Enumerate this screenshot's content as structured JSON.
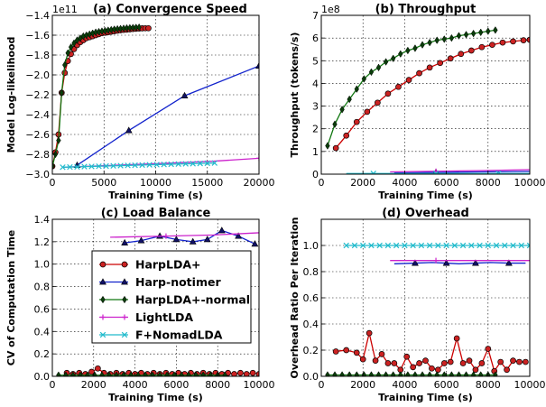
{
  "legend": {
    "entries": [
      "HarpLDA+",
      "Harp-notimer",
      "HarpLDA+-normal",
      "LightLDA",
      "F+NomadLDA"
    ]
  },
  "chart_data": [
    {
      "id": "a",
      "type": "line",
      "title": "(a) Convergence Speed",
      "xlabel": "Training Time (s)",
      "ylabel": "Model Log-likelihood",
      "y_exponent": "1e11",
      "xlim": [
        0,
        20000
      ],
      "ylim": [
        -3.0,
        -1.4
      ],
      "xticks": [
        0,
        5000,
        10000,
        15000,
        20000
      ],
      "xtick_labels": [
        "0",
        "5000",
        "10000",
        "15000",
        "20000"
      ],
      "yticks": [
        -3.0,
        -2.8,
        -2.6,
        -2.4,
        -2.2,
        -2.0,
        -1.8,
        -1.6,
        -1.4
      ],
      "ytick_labels": [
        "−3.0",
        "−2.8",
        "−2.6",
        "−2.4",
        "−2.2",
        "−2.0",
        "−1.8",
        "−1.6",
        "−1.4"
      ],
      "grid": true,
      "series": [
        {
          "name": "HarpLDA+",
          "color": "#cc0000",
          "marker": "circle",
          "marker_color": "#cc2222",
          "x": [
            0,
            300,
            600,
            900,
            1200,
            1500,
            1800,
            2100,
            2400,
            2700,
            3000,
            3300,
            3600,
            3900,
            4200,
            4500,
            4800,
            5100,
            5400,
            5700,
            6000,
            6300,
            6600,
            6900,
            7200,
            7500,
            7800,
            8100,
            8400,
            8700,
            9000,
            9300
          ],
          "y": [
            -2.92,
            -2.78,
            -2.6,
            -2.18,
            -1.98,
            -1.86,
            -1.79,
            -1.74,
            -1.7,
            -1.67,
            -1.65,
            -1.63,
            -1.62,
            -1.61,
            -1.6,
            -1.59,
            -1.58,
            -1.575,
            -1.57,
            -1.565,
            -1.56,
            -1.555,
            -1.55,
            -1.547,
            -1.544,
            -1.541,
            -1.538,
            -1.535,
            -1.533,
            -1.531,
            -1.53,
            -1.53
          ]
        },
        {
          "name": "Harp-notimer",
          "color": "#1122cc",
          "marker": "triangle",
          "marker_color": "#111166",
          "marker_every": 4,
          "x": [
            2400,
            7400,
            12800,
            20000
          ],
          "y": [
            -2.91,
            -2.56,
            -2.21,
            -1.91
          ]
        },
        {
          "name": "HarpLDA+-normal",
          "color": "#117711",
          "marker": "diamond",
          "marker_color": "#0a3d0a",
          "x": [
            0,
            300,
            600,
            900,
            1200,
            1500,
            1800,
            2100,
            2400,
            2700,
            3000,
            3300,
            3600,
            3900,
            4200,
            4500,
            4800,
            5100,
            5400,
            5700,
            6000,
            6300,
            6600,
            6900,
            7200,
            7500,
            7800,
            8100,
            8400
          ],
          "y": [
            -2.92,
            -2.8,
            -2.66,
            -2.18,
            -1.9,
            -1.78,
            -1.72,
            -1.68,
            -1.65,
            -1.63,
            -1.61,
            -1.6,
            -1.59,
            -1.58,
            -1.57,
            -1.565,
            -1.56,
            -1.555,
            -1.55,
            -1.545,
            -1.54,
            -1.537,
            -1.534,
            -1.531,
            -1.528,
            -1.526,
            -1.524,
            -1.522,
            -1.52
          ]
        },
        {
          "name": "LightLDA",
          "color": "#cc22cc",
          "marker": "plus",
          "marker_color": "#cc22cc",
          "marker_every": 3,
          "x": [
            1000,
            5000,
            10000,
            15500,
            20000
          ],
          "y": [
            -2.93,
            -2.915,
            -2.895,
            -2.87,
            -2.84
          ]
        },
        {
          "name": "F+NomadLDA",
          "color": "#22bbcc",
          "marker": "x",
          "marker_color": "#22bbcc",
          "x": [
            1000,
            1700,
            2400,
            3100,
            3800,
            4500,
            5200,
            5900,
            6600,
            7300,
            8000,
            8700,
            9400,
            10100,
            10800,
            11500,
            12200,
            12900,
            13600,
            14300,
            15000,
            15700
          ],
          "y": [
            -2.93,
            -2.928,
            -2.926,
            -2.924,
            -2.922,
            -2.92,
            -2.918,
            -2.916,
            -2.914,
            -2.912,
            -2.91,
            -2.908,
            -2.906,
            -2.904,
            -2.902,
            -2.9,
            -2.898,
            -2.896,
            -2.894,
            -2.892,
            -2.89,
            -2.888
          ]
        }
      ]
    },
    {
      "id": "b",
      "type": "line",
      "title": "(b) Throughput",
      "xlabel": "Training Time (s)",
      "ylabel": "Throughput (tokens/s)",
      "y_exponent": "1e8",
      "xlim": [
        0,
        10000
      ],
      "ylim": [
        0,
        7
      ],
      "xticks": [
        0,
        2000,
        4000,
        6000,
        8000,
        10000
      ],
      "xtick_labels": [
        "0",
        "2000",
        "4000",
        "6000",
        "8000",
        "10000"
      ],
      "yticks": [
        0,
        1,
        2,
        3,
        4,
        5,
        6,
        7
      ],
      "ytick_labels": [
        "0",
        "1",
        "2",
        "3",
        "4",
        "5",
        "6",
        "7"
      ],
      "grid": true,
      "series": [
        {
          "name": "HarpLDA+",
          "color": "#cc0000",
          "marker": "circle",
          "marker_color": "#cc2222",
          "x": [
            700,
            1200,
            1700,
            2200,
            2700,
            3200,
            3700,
            4200,
            4700,
            5200,
            5700,
            6200,
            6700,
            7200,
            7700,
            8200,
            8700,
            9200,
            9700,
            10000
          ],
          "y": [
            1.15,
            1.7,
            2.3,
            2.75,
            3.15,
            3.55,
            3.85,
            4.15,
            4.45,
            4.7,
            4.9,
            5.1,
            5.3,
            5.45,
            5.6,
            5.7,
            5.8,
            5.85,
            5.9,
            5.92
          ]
        },
        {
          "name": "Harp-notimer",
          "color": "#1122cc",
          "marker": "triangle",
          "marker_color": "#111166",
          "marker_every": 3,
          "x": [
            3500,
            5500,
            7500,
            10000
          ],
          "y": [
            0.06,
            0.08,
            0.1,
            0.12
          ]
        },
        {
          "name": "HarpLDA+-normal",
          "color": "#117711",
          "marker": "diamond",
          "marker_color": "#0a3d0a",
          "x": [
            300,
            650,
            1000,
            1350,
            1700,
            2050,
            2400,
            2750,
            3100,
            3450,
            3800,
            4150,
            4500,
            4850,
            5200,
            5550,
            5900,
            6250,
            6600,
            6950,
            7300,
            7650,
            8000,
            8350
          ],
          "y": [
            1.25,
            2.2,
            2.85,
            3.3,
            3.75,
            4.2,
            4.5,
            4.7,
            4.95,
            5.1,
            5.3,
            5.45,
            5.55,
            5.7,
            5.8,
            5.9,
            5.95,
            6.0,
            6.1,
            6.15,
            6.2,
            6.25,
            6.3,
            6.35
          ]
        },
        {
          "name": "LightLDA",
          "color": "#cc22cc",
          "marker": "plus",
          "marker_color": "#cc22cc",
          "marker_every": 3,
          "x": [
            3300,
            5500,
            7800,
            10000
          ],
          "y": [
            0.1,
            0.13,
            0.16,
            0.2
          ]
        },
        {
          "name": "F+NomadLDA",
          "color": "#22bbcc",
          "marker": "x",
          "marker_color": "#22bbcc",
          "marker_every": 2,
          "x": [
            1200,
            2500,
            4000,
            5500,
            7000,
            8500,
            10000
          ],
          "y": [
            0.03,
            0.03,
            0.03,
            0.03,
            0.03,
            0.03,
            0.03
          ]
        }
      ]
    },
    {
      "id": "c",
      "type": "line",
      "title": "(c) Load Balance",
      "xlabel": "Training Time (s)",
      "ylabel": "CV of Computation Time",
      "xlim": [
        0,
        10000
      ],
      "ylim": [
        0,
        1.4
      ],
      "xticks": [
        0,
        2000,
        4000,
        6000,
        8000,
        10000
      ],
      "xtick_labels": [
        "0",
        "2000",
        "4000",
        "6000",
        "8000",
        "10000"
      ],
      "yticks": [
        0,
        0.2,
        0.4,
        0.6,
        0.8,
        1.0,
        1.2,
        1.4
      ],
      "ytick_labels": [
        "0.0",
        "0.2",
        "0.4",
        "0.6",
        "0.8",
        "1.0",
        "1.2",
        "1.4"
      ],
      "grid": true,
      "legend_position": "center-left",
      "series": [
        {
          "name": "HarpLDA+",
          "color": "#cc0000",
          "marker": "circle",
          "marker_color": "#cc2222",
          "x": [
            700,
            1000,
            1300,
            1600,
            1900,
            2200,
            2500,
            2800,
            3100,
            3400,
            3700,
            4000,
            4300,
            4600,
            4900,
            5200,
            5500,
            5800,
            6100,
            6400,
            6700,
            7000,
            7300,
            7600,
            7900,
            8200,
            8500,
            8800,
            9100,
            9400,
            9700,
            10000
          ],
          "y": [
            0.03,
            0.02,
            0.03,
            0.02,
            0.04,
            0.07,
            0.03,
            0.02,
            0.03,
            0.02,
            0.03,
            0.02,
            0.03,
            0.02,
            0.03,
            0.02,
            0.03,
            0.02,
            0.03,
            0.02,
            0.03,
            0.02,
            0.03,
            0.02,
            0.03,
            0.02,
            0.03,
            0.02,
            0.03,
            0.02,
            0.03,
            0.02
          ]
        },
        {
          "name": "Harp-notimer",
          "color": "#1122cc",
          "marker": "triangle",
          "marker_color": "#111166",
          "x": [
            3500,
            4300,
            5200,
            6000,
            6800,
            7500,
            8200,
            9000,
            9800
          ],
          "y": [
            1.19,
            1.21,
            1.25,
            1.22,
            1.2,
            1.22,
            1.3,
            1.25,
            1.18
          ]
        },
        {
          "name": "HarpLDA+-normal",
          "color": "#117711",
          "marker": "diamond",
          "marker_color": "#0a3d0a",
          "x": [
            300,
            650,
            1000,
            1350,
            1700,
            2050,
            2400,
            2750,
            3100,
            3450,
            3800,
            4150,
            4500,
            4850,
            5200,
            5550,
            5900,
            6250,
            6600,
            6950,
            7300,
            7650,
            8000,
            8350
          ],
          "y": [
            0.01,
            0.01,
            0.01,
            0.01,
            0.01,
            0.01,
            0.01,
            0.01,
            0.01,
            0.01,
            0.01,
            0.01,
            0.01,
            0.01,
            0.01,
            0.01,
            0.01,
            0.01,
            0.01,
            0.01,
            0.01,
            0.01,
            0.01,
            0.01
          ]
        },
        {
          "name": "LightLDA",
          "color": "#cc22cc",
          "marker": "plus",
          "marker_color": "#cc22cc",
          "marker_every": 3,
          "x": [
            2800,
            5500,
            7800,
            10000
          ],
          "y": [
            1.24,
            1.25,
            1.26,
            1.28
          ]
        }
      ]
    },
    {
      "id": "d",
      "type": "line",
      "title": "(d) Overhead",
      "xlabel": "Training Time (s)",
      "ylabel": "Overhead Ratio Per Iteration",
      "xlim": [
        0,
        10000
      ],
      "ylim": [
        0,
        1.2
      ],
      "xticks": [
        0,
        2000,
        4000,
        6000,
        8000,
        10000
      ],
      "xtick_labels": [
        "0",
        "2000",
        "4000",
        "6000",
        "8000",
        "10000"
      ],
      "yticks": [
        0,
        0.2,
        0.4,
        0.6,
        0.8,
        1.0
      ],
      "ytick_labels": [
        "0.0",
        "0.2",
        "0.4",
        "0.6",
        "0.8",
        "1.0"
      ],
      "grid": true,
      "series": [
        {
          "name": "HarpLDA+",
          "color": "#cc0000",
          "marker": "circle",
          "marker_color": "#cc2222",
          "x": [
            700,
            1200,
            1700,
            2000,
            2300,
            2600,
            2900,
            3200,
            3500,
            3800,
            4100,
            4400,
            4700,
            5000,
            5300,
            5600,
            5900,
            6200,
            6500,
            6800,
            7100,
            7400,
            7700,
            8000,
            8300,
            8600,
            8900,
            9200,
            9500,
            9800
          ],
          "y": [
            0.19,
            0.2,
            0.18,
            0.13,
            0.33,
            0.12,
            0.17,
            0.1,
            0.1,
            0.05,
            0.15,
            0.07,
            0.1,
            0.12,
            0.06,
            0.05,
            0.1,
            0.11,
            0.29,
            0.1,
            0.12,
            0.05,
            0.1,
            0.21,
            0.04,
            0.11,
            0.05,
            0.12,
            0.11,
            0.11
          ]
        },
        {
          "name": "Harp-notimer",
          "color": "#1122cc",
          "marker": "triangle",
          "marker_color": "#111166",
          "marker_every": 2,
          "x": [
            3500,
            4500,
            5300,
            6000,
            6600,
            7400,
            8100,
            9000,
            9800
          ],
          "y": [
            0.86,
            0.865,
            0.87,
            0.865,
            0.86,
            0.865,
            0.87,
            0.865,
            0.865
          ]
        },
        {
          "name": "HarpLDA+-normal",
          "color": "#117711",
          "marker": "diamond",
          "marker_color": "#0a3d0a",
          "x": [
            300,
            650,
            1000,
            1350,
            1700,
            2050,
            2400,
            2750,
            3100,
            3450,
            3800,
            4150,
            4500,
            4850,
            5200,
            5550,
            5900,
            6250,
            6600,
            6950,
            7300,
            7650,
            8000,
            8350
          ],
          "y": [
            0.01,
            0.01,
            0.01,
            0.01,
            0.01,
            0.01,
            0.01,
            0.01,
            0.01,
            0.01,
            0.01,
            0.01,
            0.01,
            0.01,
            0.01,
            0.01,
            0.01,
            0.01,
            0.01,
            0.01,
            0.01,
            0.01,
            0.01,
            0.01
          ]
        },
        {
          "name": "LightLDA",
          "color": "#cc22cc",
          "marker": "plus",
          "marker_color": "#cc22cc",
          "marker_every": 3,
          "x": [
            3300,
            5500,
            7800,
            10000
          ],
          "y": [
            0.885,
            0.885,
            0.885,
            0.885
          ]
        },
        {
          "name": "F+NomadLDA",
          "color": "#22bbcc",
          "marker": "x",
          "marker_color": "#22bbcc",
          "x": [
            1200,
            1600,
            2000,
            2400,
            2800,
            3200,
            3600,
            4000,
            4400,
            4800,
            5200,
            5600,
            6000,
            6400,
            6800,
            7200,
            7600,
            8000,
            8400,
            8800,
            9200,
            9600,
            10000
          ],
          "y": [
            1.0,
            1.0,
            1.0,
            1.0,
            1.0,
            1.0,
            1.0,
            1.0,
            1.0,
            1.0,
            1.0,
            1.0,
            1.0,
            1.0,
            1.0,
            1.0,
            1.0,
            1.0,
            1.0,
            1.0,
            1.0,
            1.0,
            1.0
          ]
        }
      ]
    }
  ]
}
